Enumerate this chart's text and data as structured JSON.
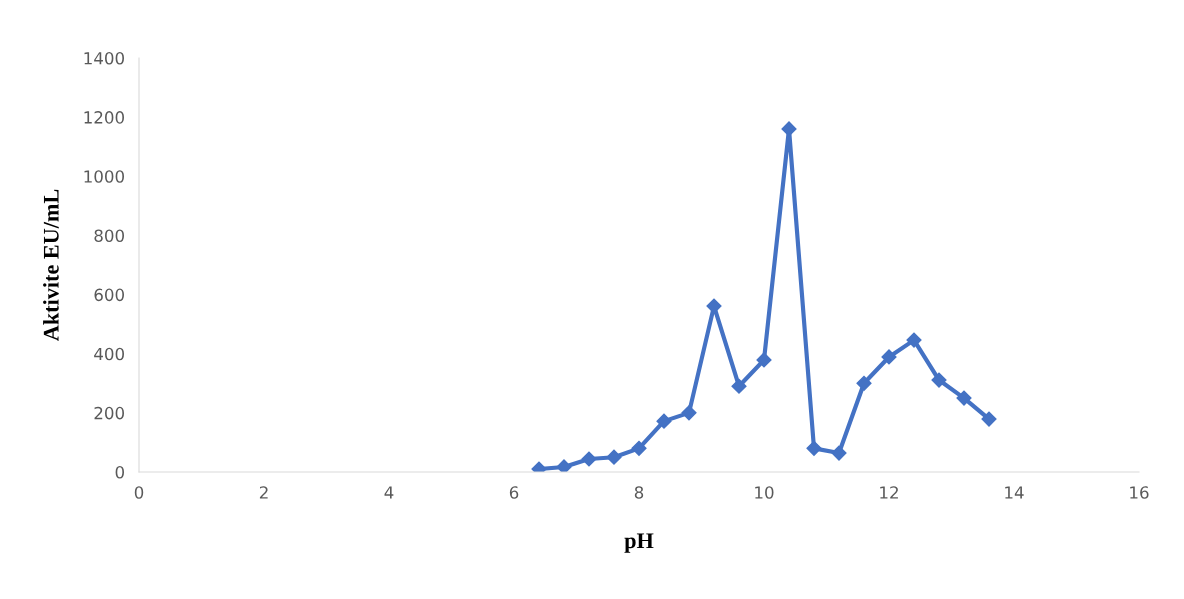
{
  "chart_data": {
    "type": "line",
    "xlabel": "pH",
    "ylabel": "Aktivite EU/mL",
    "x": [
      6.4,
      6.8,
      7.2,
      7.6,
      8.0,
      8.4,
      8.8,
      9.2,
      9.6,
      10.0,
      10.4,
      10.8,
      11.2,
      11.6,
      12.0,
      12.4,
      12.8,
      13.2,
      13.6
    ],
    "series": [
      {
        "color": "#4472c4",
        "values": [
          10,
          17,
          44,
          50,
          80,
          172,
          200,
          561,
          290,
          379,
          1160,
          80,
          64,
          300,
          389,
          446,
          311,
          250,
          179
        ]
      }
    ],
    "xlim": [
      0,
      16
    ],
    "xticks": [
      0,
      2,
      4,
      6,
      8,
      10,
      12,
      14,
      16
    ],
    "ylim": [
      0,
      1400
    ],
    "yticks": [
      0,
      200,
      400,
      600,
      800,
      1000,
      1200,
      1400
    ],
    "grid": false,
    "legend": false,
    "marker": "diamond",
    "line_style": "solid"
  }
}
